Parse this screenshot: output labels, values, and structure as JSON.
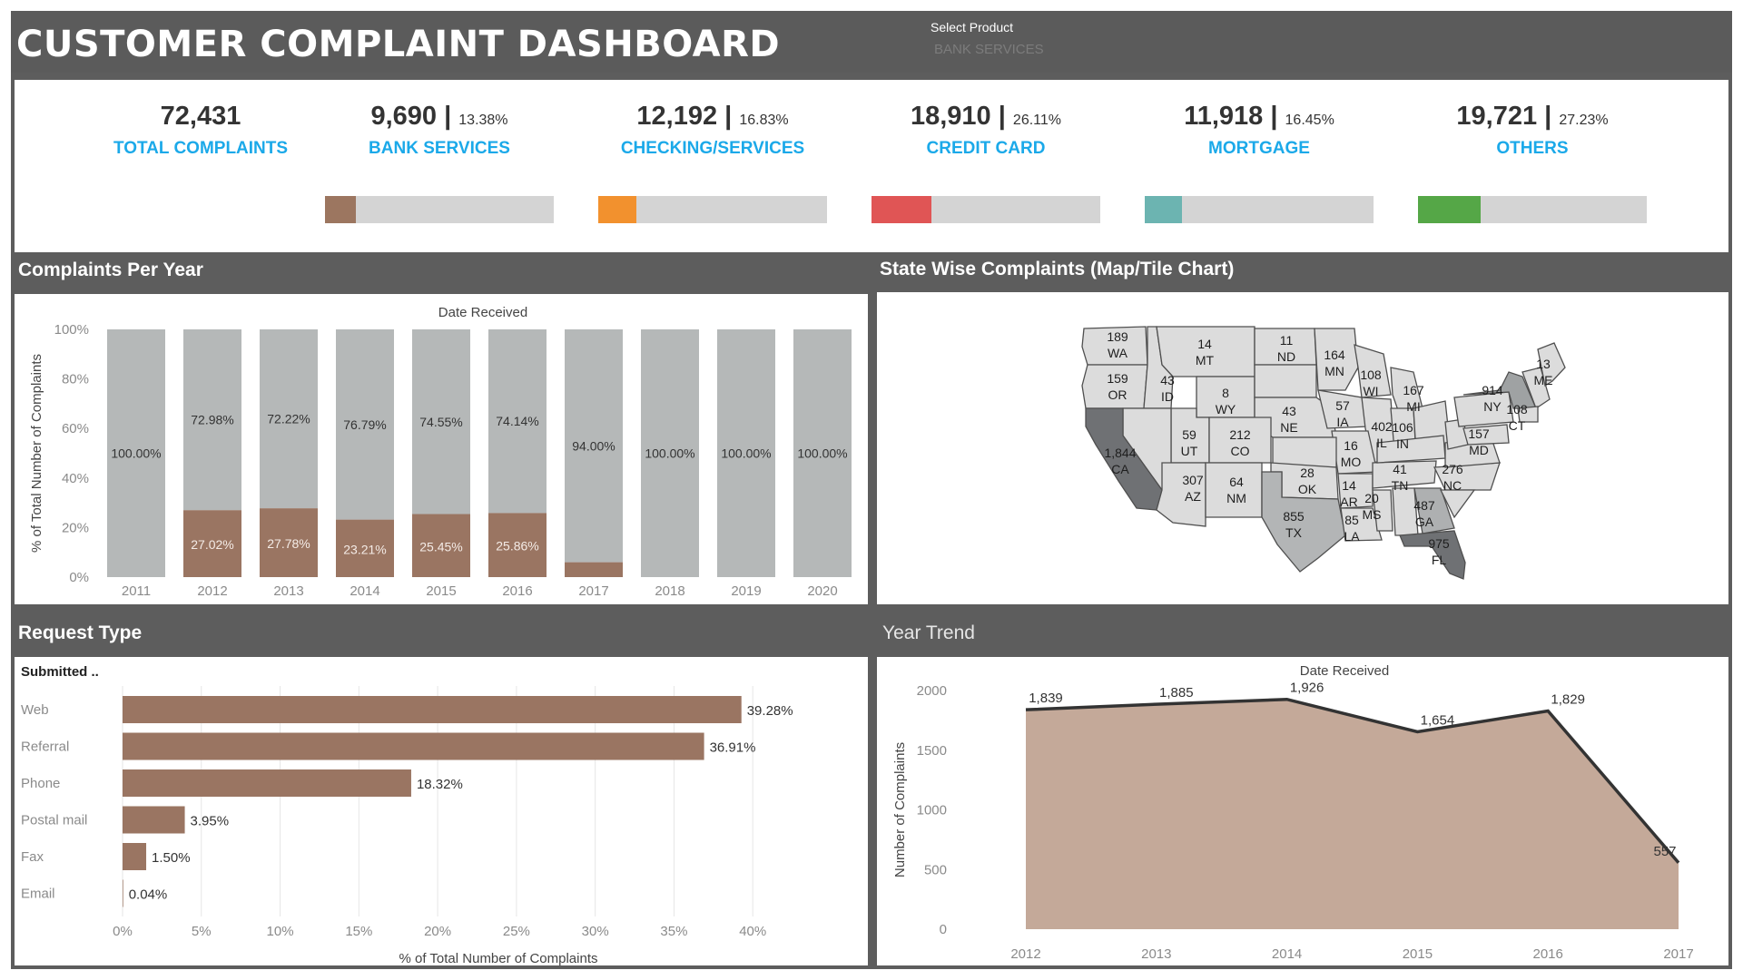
{
  "header": {
    "title": "CUSTOMER COMPLAINT DASHBOARD",
    "select_label": "Select Product",
    "select_value": "BANK SERVICES"
  },
  "kpis": {
    "total": {
      "value": "72,431",
      "label": "TOTAL COMPLAINTS"
    },
    "items": [
      {
        "value": "9,690",
        "pct": "13.38%",
        "label": "BANK SERVICES",
        "fill": 0.1338,
        "color": "#9c7660"
      },
      {
        "value": "12,192",
        "pct": "16.83%",
        "label": "CHECKING/SERVICES",
        "fill": 0.1683,
        "color": "#f2912e"
      },
      {
        "value": "18,910",
        "pct": "26.11%",
        "label": "CREDIT CARD",
        "fill": 0.2611,
        "color": "#e05555"
      },
      {
        "value": "11,918",
        "pct": "16.45%",
        "label": "MORTGAGE",
        "fill": 0.1645,
        "color": "#6cb4b1"
      },
      {
        "value": "19,721",
        "pct": "27.23%",
        "label": "OTHERS",
        "fill": 0.2723,
        "color": "#55a747"
      }
    ]
  },
  "panels": {
    "per_year_title": "Complaints Per Year",
    "state_title": "State Wise Complaints (Map/Tile Chart)",
    "request_title": "Request Type",
    "trend_title": "Year Trend"
  },
  "chart_data": [
    {
      "type": "bar",
      "name": "complaints_per_year",
      "title": "Date Received",
      "xlabel": "",
      "ylabel": "% of Total Number of Complaints",
      "ylim": [
        0,
        100
      ],
      "yticks": [
        "0%",
        "20%",
        "40%",
        "60%",
        "80%",
        "100%"
      ],
      "categories": [
        "2011",
        "2012",
        "2013",
        "2014",
        "2015",
        "2016",
        "2017",
        "2018",
        "2019",
        "2020"
      ],
      "stacked": true,
      "series": [
        {
          "values": [
            0,
            27.02,
            27.78,
            23.21,
            25.45,
            25.86,
            6.0,
            0,
            0,
            0
          ],
          "labels": [
            "",
            "27.02%",
            "27.78%",
            "23.21%",
            "25.45%",
            "25.86%",
            "",
            "",
            "",
            ""
          ],
          "color": "#9a7562"
        },
        {
          "values": [
            100,
            72.98,
            72.22,
            76.79,
            74.55,
            74.14,
            94.0,
            100,
            100,
            100
          ],
          "labels": [
            "100.00%",
            "72.98%",
            "72.22%",
            "76.79%",
            "74.55%",
            "74.14%",
            "94.00%",
            "100.00%",
            "100.00%",
            "100.00%"
          ],
          "color": "#b5b8b8"
        }
      ],
      "grid": false
    },
    {
      "type": "heatmap",
      "name": "state_wise_complaints",
      "states": [
        {
          "code": "WA",
          "value": "189"
        },
        {
          "code": "OR",
          "value": "159"
        },
        {
          "code": "ID",
          "value": "43"
        },
        {
          "code": "MT",
          "value": "14"
        },
        {
          "code": "WY",
          "value": "8"
        },
        {
          "code": "ND",
          "value": "11"
        },
        {
          "code": "MN",
          "value": "164"
        },
        {
          "code": "WI",
          "value": "108"
        },
        {
          "code": "MI",
          "value": "167"
        },
        {
          "code": "ME",
          "value": "13"
        },
        {
          "code": "NY",
          "value": "914"
        },
        {
          "code": "CT",
          "value": "108"
        },
        {
          "code": "MD",
          "value": "157"
        },
        {
          "code": "NE",
          "value": "43"
        },
        {
          "code": "IA",
          "value": "57"
        },
        {
          "code": "IL",
          "value": "402"
        },
        {
          "code": "IN",
          "value": "106"
        },
        {
          "code": "UT",
          "value": "59"
        },
        {
          "code": "CO",
          "value": "212"
        },
        {
          "code": "CA",
          "value": "1,844"
        },
        {
          "code": "MO",
          "value": "16"
        },
        {
          "code": "OK",
          "value": "28"
        },
        {
          "code": "AZ",
          "value": "307"
        },
        {
          "code": "NM",
          "value": "64"
        },
        {
          "code": "AR",
          "value": "14"
        },
        {
          "code": "TN",
          "value": "41"
        },
        {
          "code": "NC",
          "value": "276"
        },
        {
          "code": "MS",
          "value": "20"
        },
        {
          "code": "GA",
          "value": "487"
        },
        {
          "code": "TX",
          "value": "855"
        },
        {
          "code": "LA",
          "value": "85"
        },
        {
          "code": "FL",
          "value": "975"
        }
      ]
    },
    {
      "type": "bar",
      "name": "request_type",
      "orientation": "horizontal",
      "title": "",
      "row_header": "Submitted ..",
      "xlabel": "% of Total Number of Complaints",
      "xlim": [
        0,
        45
      ],
      "xticks": [
        "0%",
        "5%",
        "10%",
        "15%",
        "20%",
        "25%",
        "30%",
        "35%",
        "40%"
      ],
      "categories": [
        "Web",
        "Referral",
        "Phone",
        "Postal mail",
        "Fax",
        "Email"
      ],
      "values": [
        39.28,
        36.91,
        18.32,
        3.95,
        1.5,
        0.04
      ],
      "labels": [
        "39.28%",
        "36.91%",
        "18.32%",
        "3.95%",
        "1.50%",
        "0.04%"
      ],
      "color": "#9a7562",
      "grid": true
    },
    {
      "type": "area",
      "name": "year_trend",
      "title": "Date Received",
      "ylabel": "Number of Complaints",
      "ylim": [
        0,
        2000
      ],
      "yticks": [
        "0",
        "500",
        "1000",
        "1500",
        "2000"
      ],
      "x": [
        "2012",
        "2013",
        "2014",
        "2015",
        "2016",
        "2017"
      ],
      "values": [
        1839,
        1885,
        1926,
        1654,
        1829,
        557
      ],
      "labels": [
        "1,839",
        "1,885",
        "1,926",
        "1,654",
        "1,829",
        "557"
      ],
      "fill_color": "#c4a999",
      "line_color": "#333333"
    }
  ]
}
